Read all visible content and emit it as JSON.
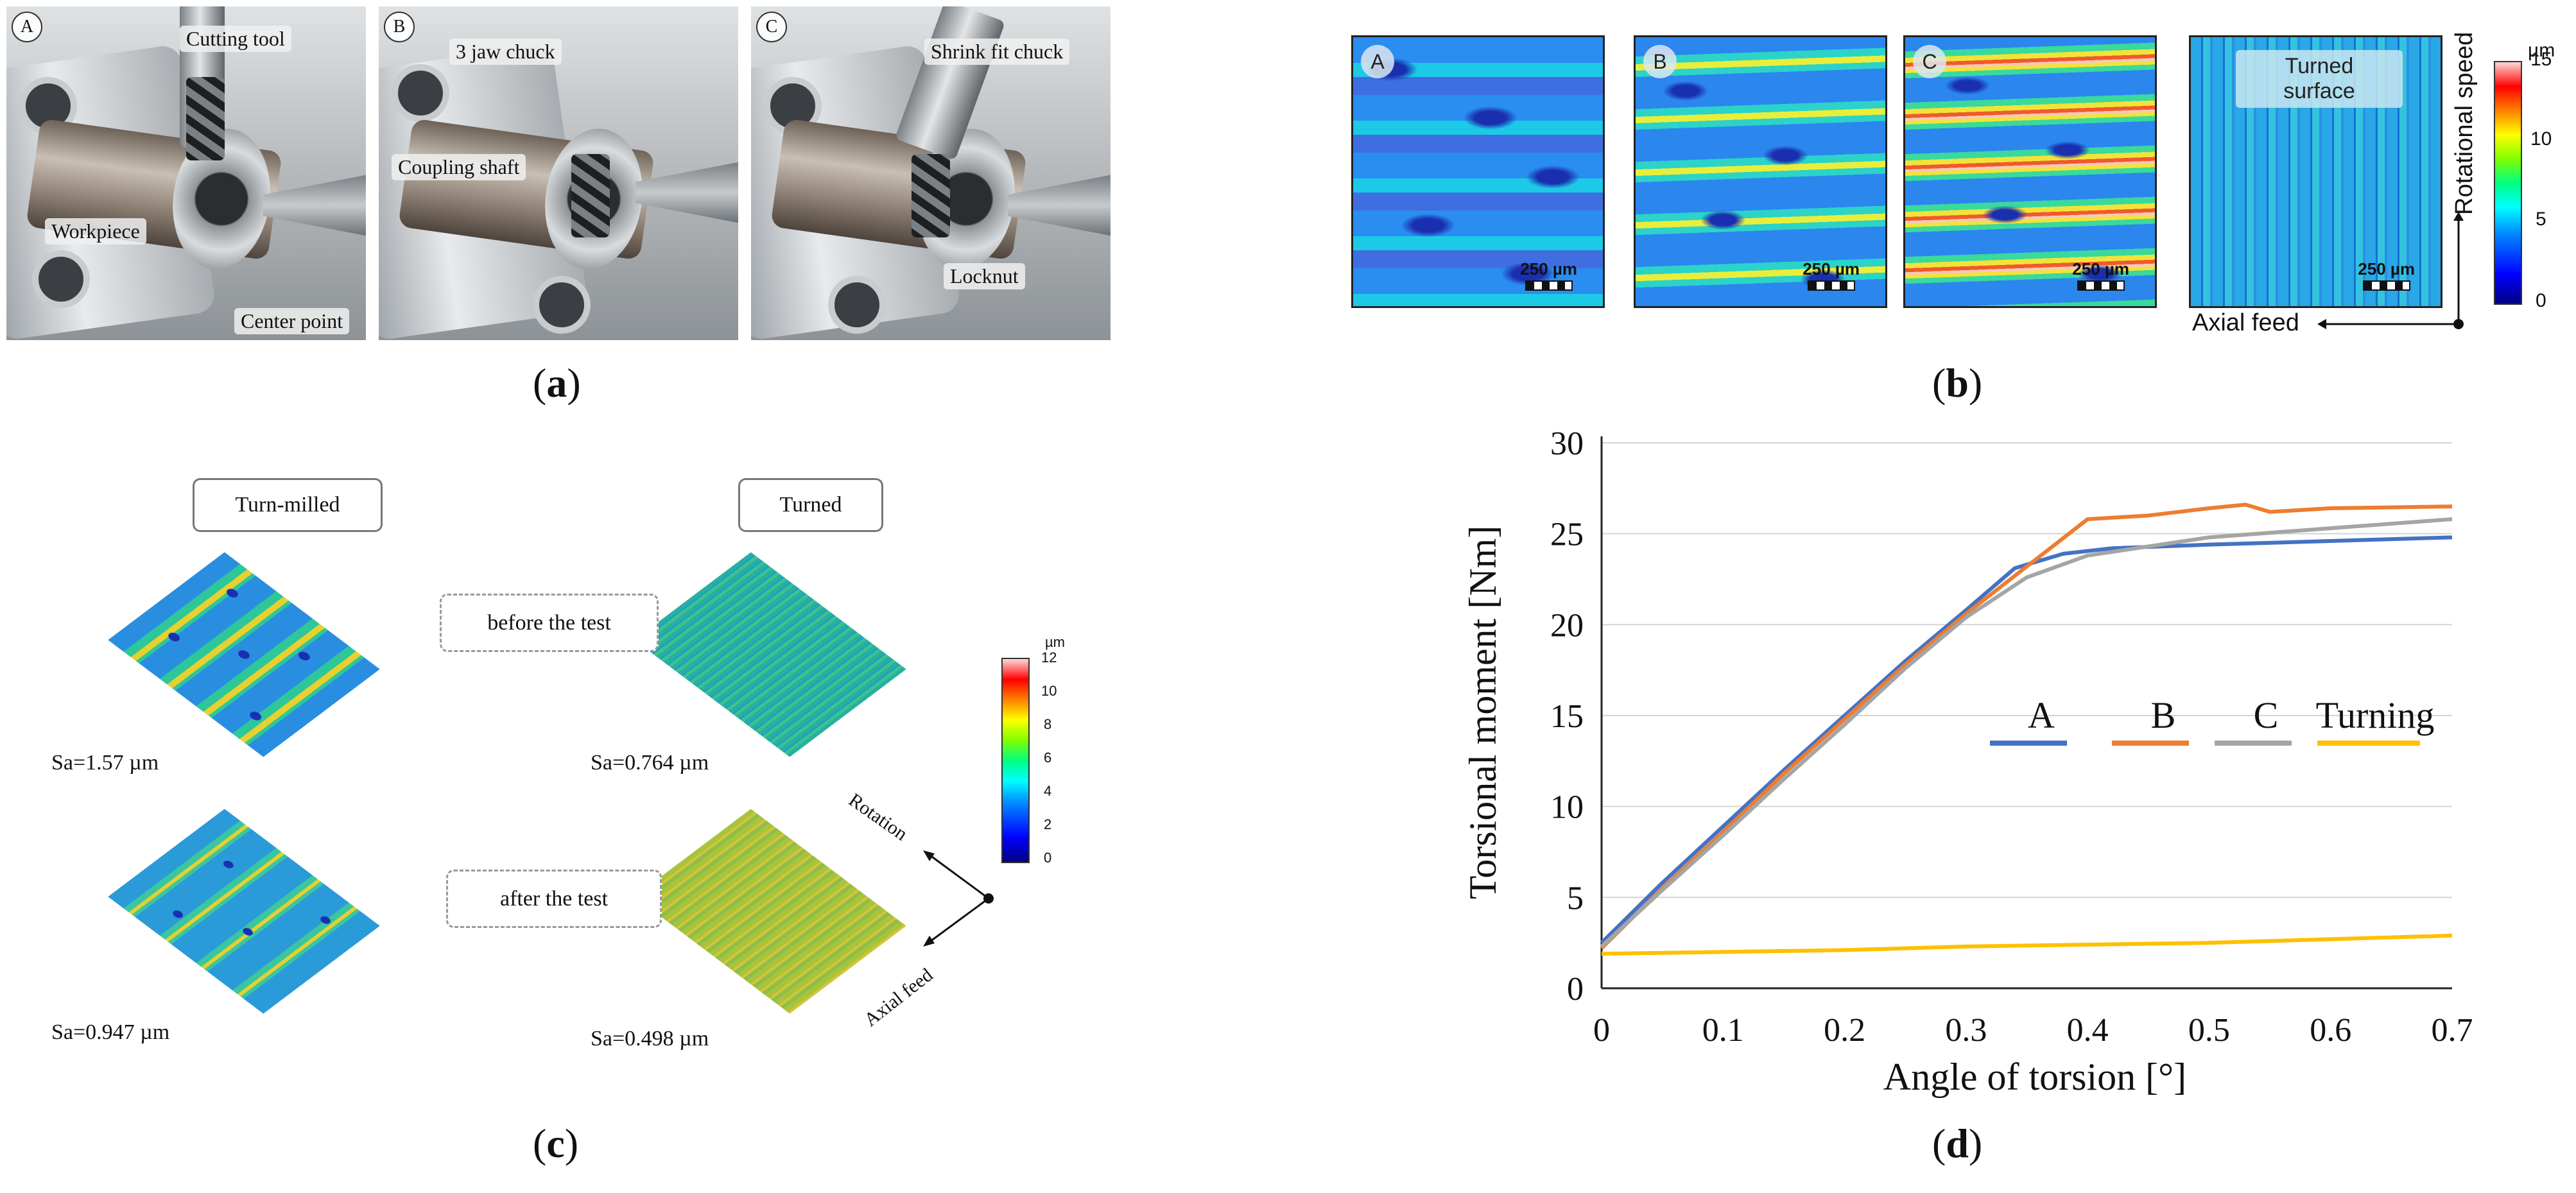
{
  "panel_a": {
    "caption": "a",
    "renders": [
      {
        "letter": "A",
        "labels": [
          "Cutting tool",
          "Workpiece",
          "Center point"
        ]
      },
      {
        "letter": "B",
        "labels": [
          "3 jaw chuck",
          "Coupling shaft"
        ]
      },
      {
        "letter": "C",
        "labels": [
          "Shrink fit chuck",
          "Locknut"
        ]
      }
    ]
  },
  "panel_b": {
    "caption": "b",
    "maps": [
      {
        "letter": "A",
        "scale": "250 µm"
      },
      {
        "letter": "B",
        "scale": "250 µm"
      },
      {
        "letter": "C",
        "scale": "250 µm"
      },
      {
        "letter": "Turned\nsurface",
        "scale": "250 µm"
      }
    ],
    "colorbar": {
      "unit": "µm",
      "ticks": [
        "15",
        "10",
        "5",
        "0"
      ]
    },
    "axis_vertical": "Rotational speed",
    "axis_horizontal": "Axial feed"
  },
  "panel_c": {
    "caption": "c",
    "header_left": "Turn-milled",
    "header_right": "Turned",
    "before_label": "before the test",
    "after_label": "after the test",
    "sa_values": [
      "Sa=1.57 µm",
      "Sa=0.764 µm",
      "Sa=0.947 µm",
      "Sa=0.498 µm"
    ],
    "colorbar": {
      "unit": "µm",
      "ticks": [
        "12",
        "10",
        "8",
        "6",
        "4",
        "2",
        "0"
      ]
    },
    "axis_rotation": "Rotation",
    "axis_feed": "Axial feed"
  },
  "panel_d": {
    "caption": "d"
  },
  "colors": {
    "A": "#4472c4",
    "B": "#ed7d31",
    "C": "#a5a5a5",
    "Turning": "#ffc000"
  },
  "chart_data": {
    "type": "line",
    "xlabel": "Angle of torsion [°]",
    "ylabel": "Torsional moment [Nm]",
    "xlim": [
      0,
      0.7
    ],
    "ylim": [
      0,
      30
    ],
    "xticks": [
      "0",
      "0.1",
      "0.2",
      "0.3",
      "0.4",
      "0.5",
      "0.6",
      "0.7"
    ],
    "yticks": [
      "0",
      "5",
      "10",
      "15",
      "20",
      "25",
      "30"
    ],
    "grid": true,
    "legend": [
      "A",
      "B",
      "C",
      "Turning"
    ],
    "series": [
      {
        "name": "A",
        "x": [
          0,
          0.05,
          0.1,
          0.15,
          0.2,
          0.25,
          0.3,
          0.34,
          0.38,
          0.42,
          0.5,
          0.6,
          0.7
        ],
        "y": [
          2.5,
          5.8,
          8.9,
          12.0,
          15.0,
          18.0,
          20.8,
          23.1,
          23.9,
          24.2,
          24.4,
          24.6,
          24.8
        ]
      },
      {
        "name": "B",
        "x": [
          0,
          0.05,
          0.1,
          0.15,
          0.2,
          0.25,
          0.3,
          0.35,
          0.4,
          0.45,
          0.5,
          0.53,
          0.55,
          0.6,
          0.7
        ],
        "y": [
          2.2,
          5.5,
          8.6,
          11.8,
          14.8,
          17.8,
          20.6,
          23.2,
          25.8,
          26.0,
          26.4,
          26.6,
          26.2,
          26.4,
          26.5
        ]
      },
      {
        "name": "C",
        "x": [
          0,
          0.05,
          0.1,
          0.15,
          0.2,
          0.25,
          0.3,
          0.35,
          0.4,
          0.45,
          0.5,
          0.6,
          0.7
        ],
        "y": [
          2.3,
          5.4,
          8.4,
          11.5,
          14.5,
          17.6,
          20.4,
          22.6,
          23.8,
          24.3,
          24.8,
          25.3,
          25.8
        ]
      },
      {
        "name": "Turning",
        "x": [
          0,
          0.1,
          0.2,
          0.3,
          0.4,
          0.5,
          0.6,
          0.7
        ],
        "y": [
          1.9,
          2.0,
          2.1,
          2.3,
          2.4,
          2.5,
          2.7,
          2.9
        ]
      }
    ]
  }
}
